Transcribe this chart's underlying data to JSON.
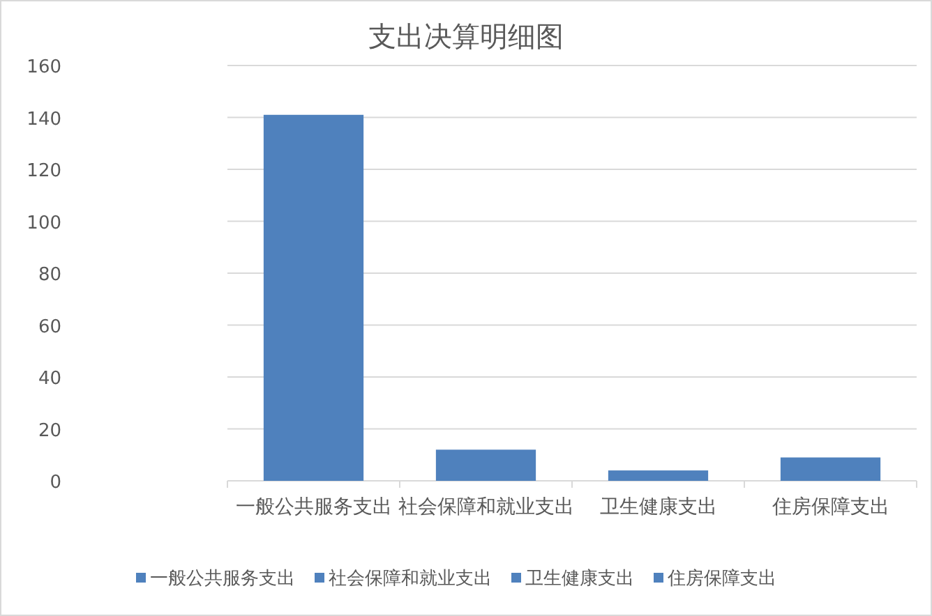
{
  "chart_data": {
    "type": "bar",
    "title": "支出决算明细图",
    "categories": [
      "一般公共服务支出",
      "社会保障和就业支出",
      "卫生健康支出",
      "住房保障支出"
    ],
    "series": [
      {
        "name": "一般公共服务支出",
        "color": "#4f81bd",
        "values": [
          141,
          null,
          null,
          null
        ]
      },
      {
        "name": "社会保障和就业支出",
        "color": "#4f81bd",
        "values": [
          null,
          12,
          null,
          null
        ]
      },
      {
        "name": "卫生健康支出",
        "color": "#4f81bd",
        "values": [
          null,
          null,
          4,
          null
        ]
      },
      {
        "name": "住房保障支出",
        "color": "#4f81bd",
        "values": [
          null,
          null,
          null,
          9
        ]
      }
    ],
    "ylim": [
      0,
      160
    ],
    "yticks": [
      0,
      20,
      40,
      60,
      80,
      100,
      120,
      140,
      160
    ],
    "grid": "y",
    "legend": "bottom"
  }
}
